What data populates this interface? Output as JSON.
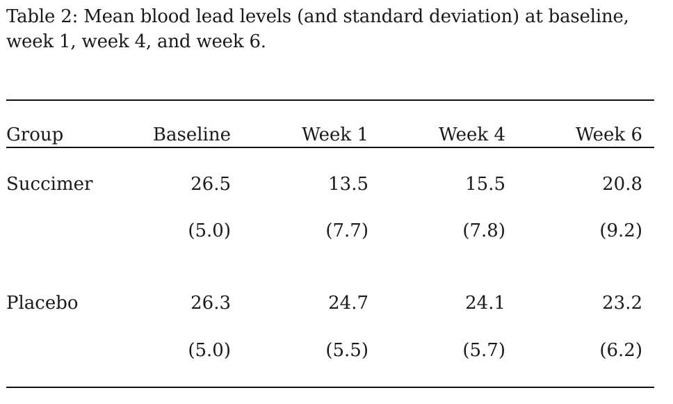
{
  "caption": "Table 2: Mean blood lead levels (and standard deviation) at baseline, week 1, week 4, and week 6.",
  "table": {
    "headers": [
      "Group",
      "Baseline",
      "Week 1",
      "Week 4",
      "Week 6"
    ],
    "rows": [
      {
        "group": "Succimer",
        "means": [
          "26.5",
          "13.5",
          "15.5",
          "20.8"
        ],
        "sds": [
          "(5.0)",
          "(7.7)",
          "(7.8)",
          "(9.2)"
        ]
      },
      {
        "group": "Placebo",
        "means": [
          "26.3",
          "24.7",
          "24.1",
          "23.2"
        ],
        "sds": [
          "(5.0)",
          "(5.5)",
          "(5.7)",
          "(6.2)"
        ]
      }
    ]
  }
}
